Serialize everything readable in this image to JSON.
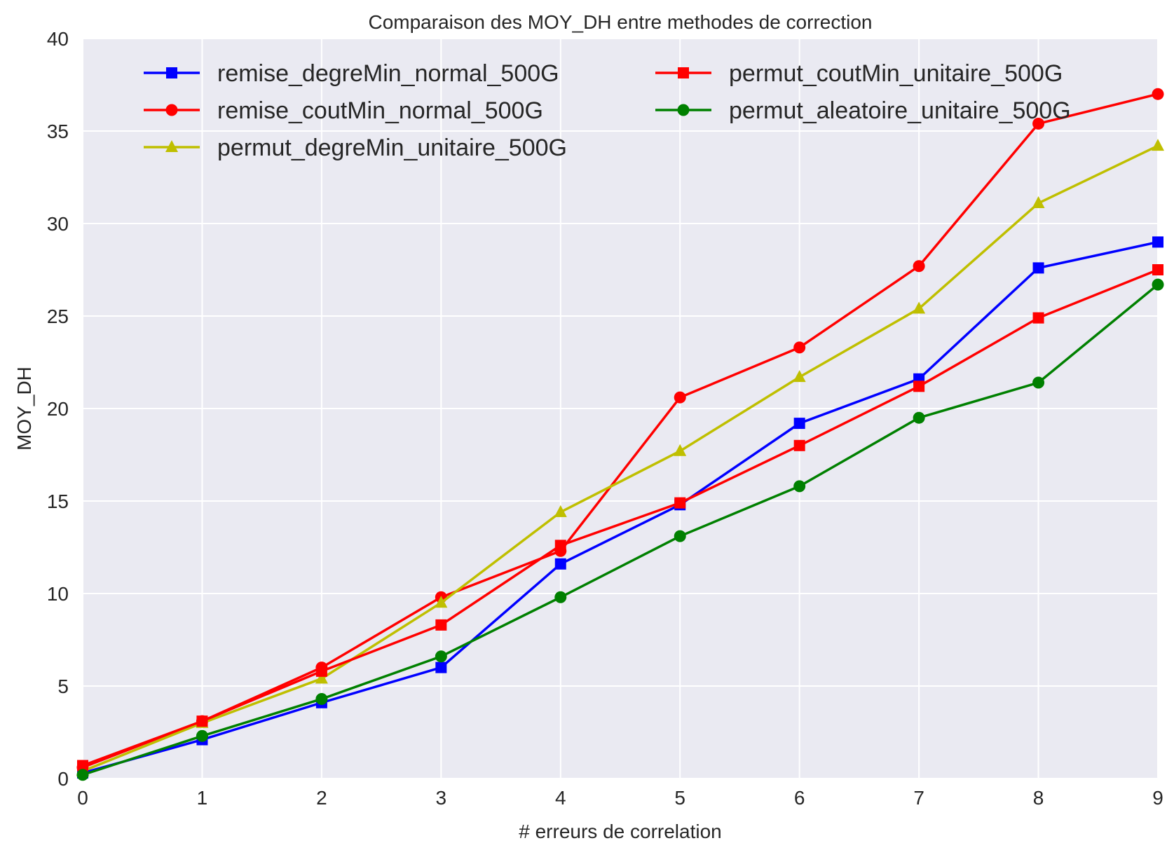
{
  "chart_data": {
    "type": "line",
    "title": "Comparaison des MOY_DH entre methodes de correction",
    "xlabel": "# erreurs de correlation",
    "ylabel": "MOY_DH",
    "xlim": [
      0,
      9
    ],
    "ylim": [
      0,
      40
    ],
    "xticks": [
      "0",
      "1",
      "2",
      "3",
      "4",
      "5",
      "6",
      "7",
      "8",
      "9"
    ],
    "yticks": [
      "0",
      "5",
      "10",
      "15",
      "20",
      "25",
      "30",
      "35",
      "40"
    ],
    "grid": true,
    "legend_position": "top",
    "x": [
      0,
      1,
      2,
      3,
      4,
      5,
      6,
      7,
      8,
      9
    ],
    "series": [
      {
        "name": "remise_degreMin_normal_500G",
        "color": "#0000ff",
        "marker": "square",
        "values": [
          0.3,
          2.1,
          4.1,
          6.0,
          11.6,
          14.8,
          19.2,
          21.6,
          27.6,
          29.0
        ]
      },
      {
        "name": "remise_coutMin_normal_500G",
        "color": "#ff0000",
        "marker": "circle",
        "values": [
          0.6,
          3.1,
          6.0,
          9.8,
          12.3,
          20.6,
          23.3,
          27.7,
          35.4,
          37.0
        ]
      },
      {
        "name": "permut_degreMin_unitaire_500G",
        "color": "#bfbf00",
        "marker": "triangle",
        "values": [
          0.4,
          3.0,
          5.4,
          9.5,
          14.4,
          17.7,
          21.7,
          25.4,
          31.1,
          34.2
        ]
      },
      {
        "name": "permut_coutMin_unitaire_500G",
        "color": "#ff0000",
        "marker": "square",
        "values": [
          0.7,
          3.1,
          5.8,
          8.3,
          12.6,
          14.9,
          18.0,
          21.2,
          24.9,
          27.5
        ]
      },
      {
        "name": "permut_aleatoire_unitaire_500G",
        "color": "#008000",
        "marker": "circle",
        "values": [
          0.2,
          2.3,
          4.3,
          6.6,
          9.8,
          13.1,
          15.8,
          19.5,
          21.4,
          26.7
        ]
      }
    ]
  }
}
